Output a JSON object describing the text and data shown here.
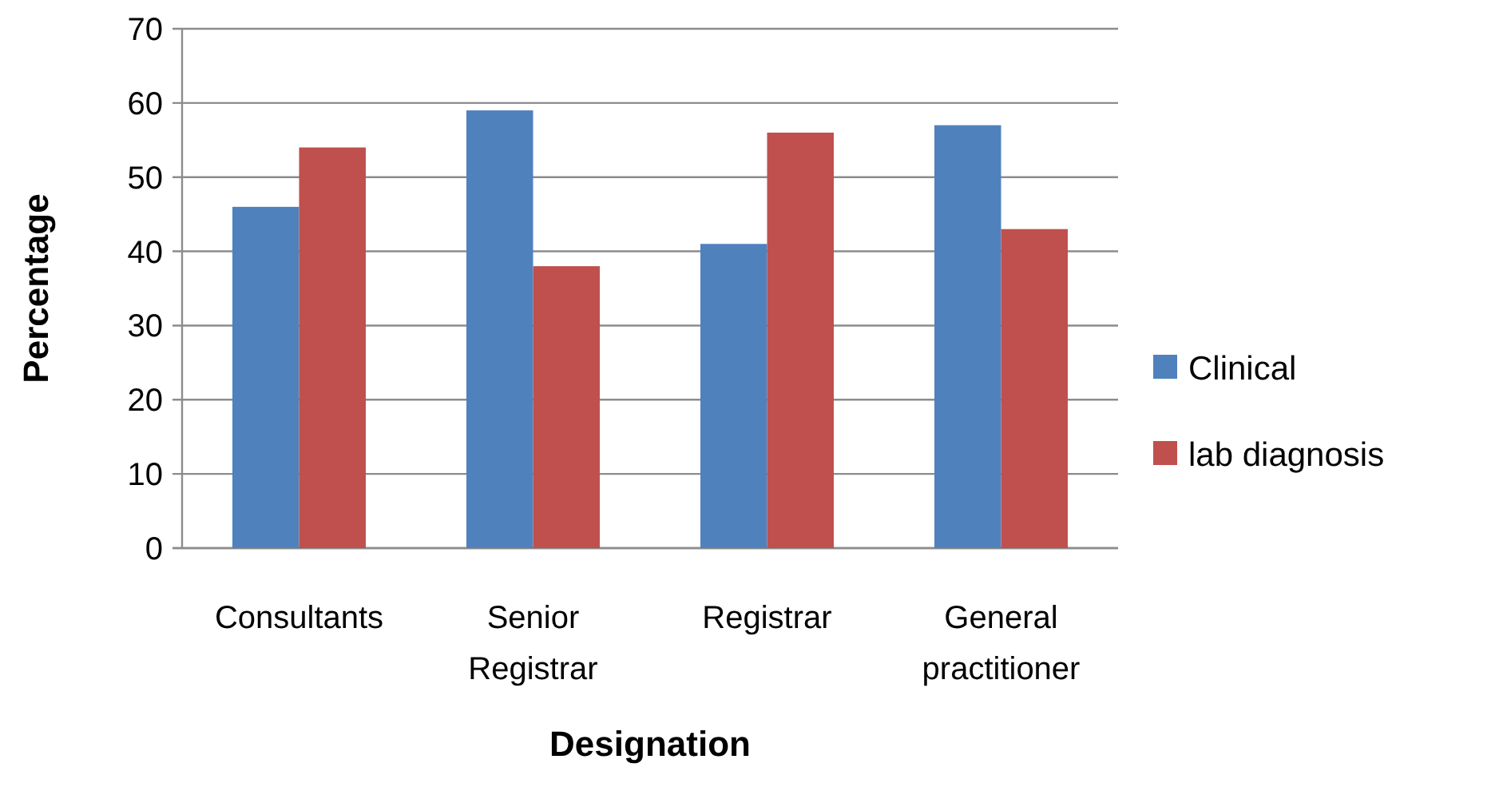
{
  "chart_data": {
    "type": "bar",
    "xlabel": "Designation",
    "ylabel": "Percentage",
    "categories": [
      "Consultants",
      "Senior Registrar",
      "Registrar",
      "General practitioner"
    ],
    "series": [
      {
        "name": "Clinical",
        "color": "#4f81bd",
        "values": [
          46,
          59,
          41,
          57
        ]
      },
      {
        "name": "lab diagnosis",
        "color": "#c0504d",
        "values": [
          54,
          38,
          56,
          43
        ]
      }
    ],
    "ylim": [
      0,
      70
    ],
    "yticks": [
      0,
      10,
      20,
      30,
      40,
      50,
      60,
      70
    ],
    "grid": "y",
    "legend": "right"
  }
}
